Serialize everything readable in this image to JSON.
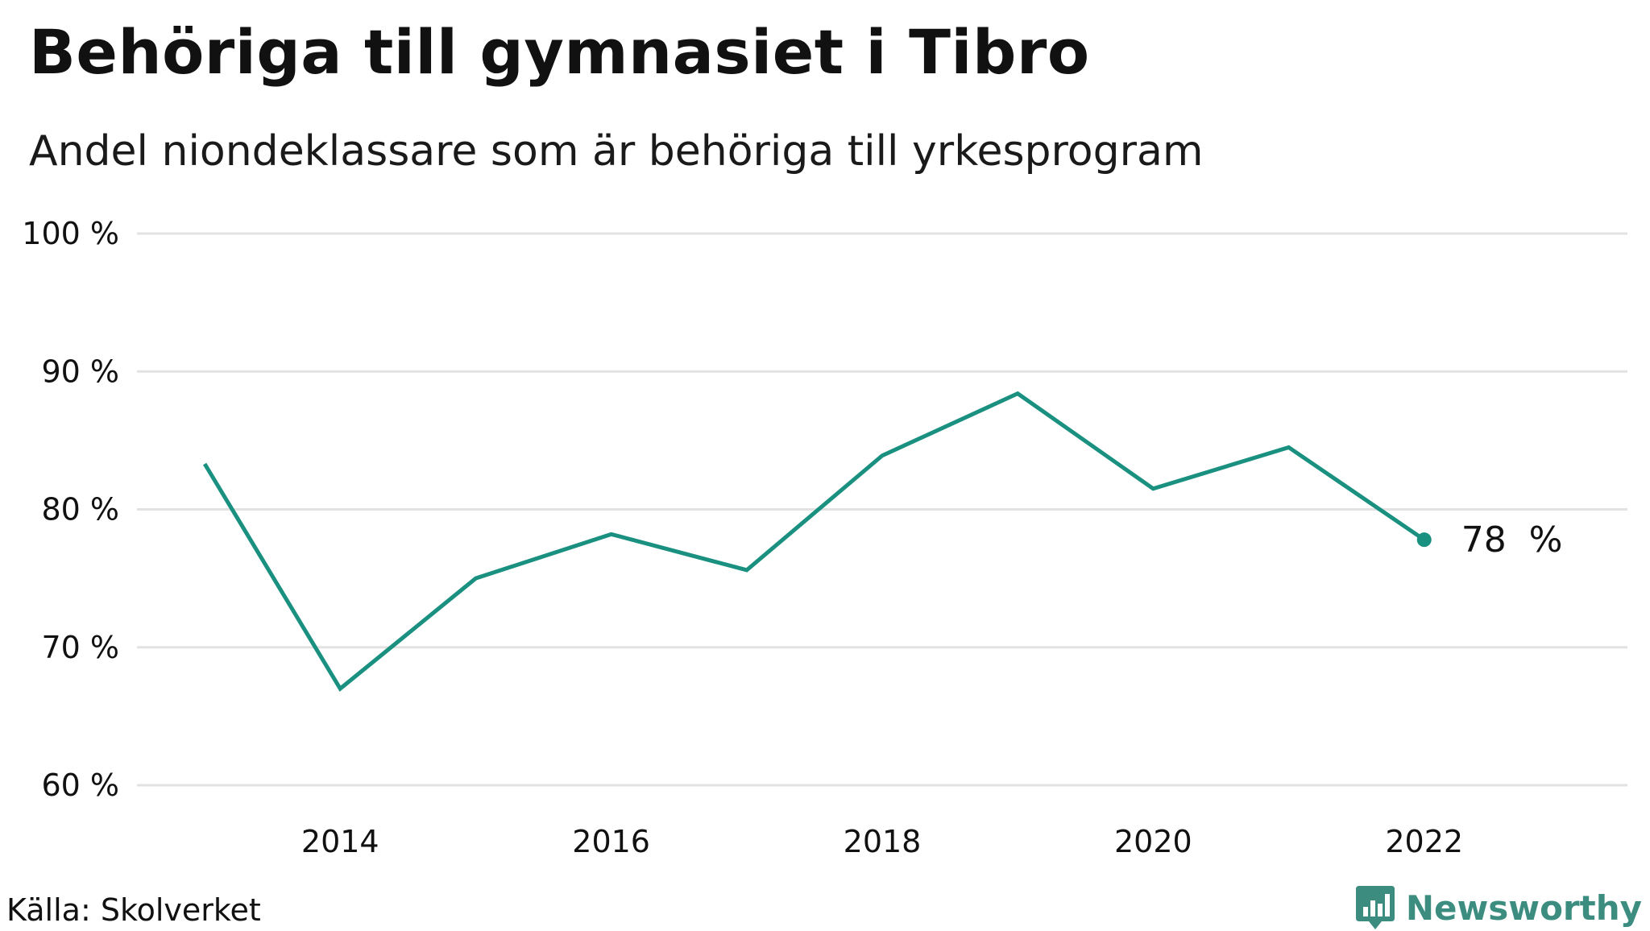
{
  "header": {
    "title": "Behöriga till gymnasiet i Tibro",
    "subtitle": "Andel niondeklassare som är behöriga till yrkesprogram"
  },
  "footer": {
    "source": "Källa: Skolverket",
    "brand": "Newsworthy",
    "brand_icon": "bar-chart-bubble-icon"
  },
  "colors": {
    "line": "#1a9080",
    "grid": "#e2e2e2",
    "text": "#111111",
    "brand": "#3c8d80"
  },
  "chart_data": {
    "type": "line",
    "title": "Behöriga till gymnasiet i Tibro",
    "subtitle": "Andel niondeklassare som är behöriga till yrkesprogram",
    "x": [
      2013,
      2014,
      2015,
      2016,
      2017,
      2018,
      2019,
      2020,
      2021,
      2022
    ],
    "series": [
      {
        "values": [
          83.3,
          67.0,
          75.0,
          78.2,
          75.6,
          83.9,
          88.4,
          81.5,
          84.5,
          77.8
        ]
      }
    ],
    "ylim": [
      60,
      100
    ],
    "yticks": [
      60,
      70,
      80,
      90,
      100
    ],
    "ytick_labels": [
      "60 %",
      "70 %",
      "80 %",
      "90 %",
      "100 %"
    ],
    "xticks": [
      2014,
      2016,
      2018,
      2020,
      2022
    ],
    "xtick_labels": [
      "2014",
      "2016",
      "2018",
      "2020",
      "2022"
    ],
    "xlim": [
      2012.5,
      2023.5
    ],
    "grid": true,
    "end_label": "78  %"
  }
}
